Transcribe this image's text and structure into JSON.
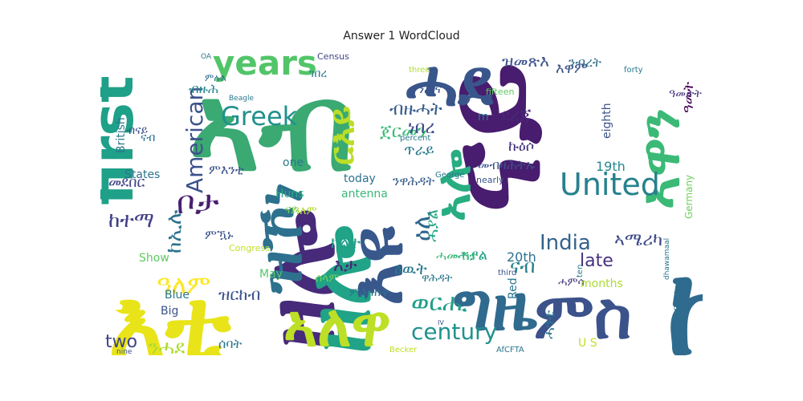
{
  "chart_data": {
    "type": "wordcloud",
    "title": "Answer 1 WordCloud",
    "colormap": "viridis",
    "background": "#ffffff",
    "words": [
      {
        "text": "ኣብ",
        "weight": 1.0,
        "color": "#3aa972"
      },
      {
        "text": "ናይ",
        "weight": 0.98,
        "color": "#481c6e"
      },
      {
        "text": "ከም",
        "weight": 0.95,
        "color": "#2f6b8e"
      },
      {
        "text": "እቲ",
        "weight": 0.9,
        "color": "#e8e419"
      },
      {
        "text": "ዘሎ",
        "weight": 0.82,
        "color": "#472a7a"
      },
      {
        "text": "ዘሎ",
        "weight": 0.72,
        "color": "#20a386"
      },
      {
        "text": "እዩ",
        "weight": 0.6,
        "color": "#38588c"
      },
      {
        "text": "ዝኾነ",
        "weight": 0.62,
        "color": "#2d718e"
      },
      {
        "text": "ኣለዋ",
        "weight": 0.55,
        "color": "#bddf26"
      },
      {
        "text": "ግዜ",
        "weight": 0.58,
        "color": "#306a8e"
      },
      {
        "text": "ምስ",
        "weight": 0.55,
        "color": "#3b528b"
      },
      {
        "text": "ሓደ",
        "weight": 0.5,
        "color": "#39568c"
      },
      {
        "text": "ኣዋን",
        "weight": 0.45,
        "color": "#3aba76"
      },
      {
        "text": "ኣሎ",
        "weight": 0.42,
        "color": "#27ad81"
      },
      {
        "text": "first",
        "weight": 0.42,
        "color": "#1fa088"
      },
      {
        "text": "years",
        "weight": 0.32,
        "color": "#52c569"
      },
      {
        "text": "United",
        "weight": 0.3,
        "color": "#26818e"
      },
      {
        "text": "ዓመት",
        "weight": 0.28,
        "color": "#440154"
      },
      {
        "text": "ዕሊ",
        "weight": 0.26,
        "color": "#31678e"
      },
      {
        "text": "ዓለም",
        "weight": 0.26,
        "color": "#fde725"
      },
      {
        "text": "ቦታ",
        "weight": 0.26,
        "color": "#481f70"
      },
      {
        "text": "ርእይ",
        "weight": 0.25,
        "color": "#bade28"
      },
      {
        "text": "Greek",
        "weight": 0.22,
        "color": "#21918c"
      },
      {
        "text": "American",
        "weight": 0.2,
        "color": "#3b528b"
      },
      {
        "text": "century",
        "weight": 0.2,
        "color": "#20928c"
      },
      {
        "text": "India",
        "weight": 0.17,
        "color": "#33638d"
      },
      {
        "text": "ከተማ",
        "weight": 0.17,
        "color": "#424086"
      },
      {
        "text": "ከኢሉ",
        "weight": 0.16,
        "color": "#2c728e"
      },
      {
        "text": "ወርሒ",
        "weight": 0.18,
        "color": "#1f9e89"
      },
      {
        "text": "ጀርመን",
        "weight": 0.15,
        "color": "#3aba76"
      },
      {
        "text": "ኣሜሪካ",
        "weight": 0.14,
        "color": "#3e4989"
      },
      {
        "text": "ብዙሓት",
        "weight": 0.14,
        "color": "#365c8d"
      },
      {
        "text": "ዝመጽእ",
        "weight": 0.13,
        "color": "#3b528b"
      },
      {
        "text": "ደረጃ",
        "weight": 0.13,
        "color": "#482878"
      },
      {
        "text": "ነበረ",
        "weight": 0.13,
        "color": "#3e4a89"
      },
      {
        "text": "ናብ",
        "weight": 0.13,
        "color": "#26828e"
      },
      {
        "text": "two",
        "weight": 0.13,
        "color": "#414487"
      },
      {
        "text": "late",
        "weight": 0.12,
        "color": "#46327e"
      },
      {
        "text": "ንሓደ",
        "weight": 0.12,
        "color": "#addc30"
      },
      {
        "text": "ሓንቲ",
        "weight": 0.11,
        "color": "#2a788e"
      },
      {
        "text": "ገበረ",
        "weight": 0.11,
        "color": "#297b8e"
      },
      {
        "text": "ክልተ",
        "weight": 0.1,
        "color": "#1f9f88"
      },
      {
        "text": "እታ",
        "weight": 0.1,
        "color": "#482475"
      },
      {
        "text": "ዝርከብ",
        "weight": 0.1,
        "color": "#3b528b"
      },
      {
        "text": "ጥራይ",
        "weight": 0.09,
        "color": "#2a788e"
      },
      {
        "text": "ብዙሕ",
        "weight": 0.09,
        "color": "#23888e"
      },
      {
        "text": "ኩዕሶ",
        "weight": 0.09,
        "color": "#46337f"
      },
      {
        "text": "እዋም",
        "weight": 0.09,
        "color": "#3b528b"
      },
      {
        "text": "ሓያል",
        "weight": 0.09,
        "color": "#20a486"
      },
      {
        "text": "ሓያል",
        "weight": 0.09,
        "color": "#22a884"
      },
      {
        "text": "ንብረት",
        "weight": 0.08,
        "color": "#2e6f8e"
      },
      {
        "text": "ንሕና",
        "weight": 0.08,
        "color": "#3b528b"
      },
      {
        "text": "19th",
        "weight": 0.08,
        "color": "#24878e"
      },
      {
        "text": "20th",
        "weight": 0.08,
        "color": "#2d718e"
      },
      {
        "text": "ዓመታት",
        "weight": 0.08,
        "color": "#46337f"
      },
      {
        "text": "ዕዉት",
        "weight": 0.08,
        "color": "#2a788e"
      },
      {
        "text": "ኣፍሪቃ",
        "weight": 0.08,
        "color": "#2e6e8e"
      },
      {
        "text": "ሓሙሽተ",
        "weight": 0.08,
        "color": "#3aba76"
      },
      {
        "text": "መደበር",
        "weight": 0.07,
        "color": "#414487"
      },
      {
        "text": "ናብ",
        "weight": 0.07,
        "color": "#2c728e"
      },
      {
        "text": "ንዋሕዳት",
        "weight": 0.07,
        "color": "#365d8d"
      },
      {
        "text": "ሰላም",
        "weight": 0.07,
        "color": "#6ece58"
      },
      {
        "text": "ሓምሳ",
        "weight": 0.07,
        "color": "#443a83"
      },
      {
        "text": "መብዛሕትኡ",
        "weight": 0.07,
        "color": "#3b528b"
      },
      {
        "text": "ምእንቲ",
        "weight": 0.07,
        "color": "#3b528b"
      },
      {
        "text": "ሰባት",
        "weight": 0.07,
        "color": "#2a788e"
      },
      {
        "text": "ዋሕዳት",
        "weight": 0.07,
        "color": "#2a788e"
      },
      {
        "text": "ምሕዝነት",
        "weight": 0.07,
        "color": "#2d708e"
      },
      {
        "text": "ዓለም",
        "weight": 0.07,
        "color": "#addc30"
      },
      {
        "text": "ብናይ",
        "weight": 0.07,
        "color": "#3b528b"
      },
      {
        "text": "ምሉእ",
        "weight": 0.07,
        "color": "#2f6b8e"
      },
      {
        "text": "ምዃኑ",
        "weight": 0.07,
        "color": "#3b528b"
      },
      {
        "text": "ናይ",
        "weight": 0.07,
        "color": "#6ece58"
      },
      {
        "text": "States",
        "weight": 0.06,
        "color": "#2c728e"
      },
      {
        "text": "British",
        "weight": 0.06,
        "color": "#2a788e"
      },
      {
        "text": "antenna",
        "weight": 0.06,
        "color": "#38b977"
      },
      {
        "text": "Huns",
        "weight": 0.06,
        "color": "#27ad81"
      },
      {
        "text": "one",
        "weight": 0.06,
        "color": "#2a788e"
      },
      {
        "text": "today",
        "weight": 0.06,
        "color": "#2c728e"
      },
      {
        "text": "May",
        "weight": 0.06,
        "color": "#54c568"
      },
      {
        "text": "Blue",
        "weight": 0.06,
        "color": "#2a788e"
      },
      {
        "text": "Big",
        "weight": 0.06,
        "color": "#3b528b"
      },
      {
        "text": "Show",
        "weight": 0.06,
        "color": "#5ec962"
      },
      {
        "text": "eighth",
        "weight": 0.06,
        "color": "#3b528b"
      },
      {
        "text": "Germany",
        "weight": 0.06,
        "color": "#6ece58"
      },
      {
        "text": "months",
        "weight": 0.06,
        "color": "#addc30"
      },
      {
        "text": "Red",
        "weight": 0.06,
        "color": "#2a788e"
      },
      {
        "text": "U S",
        "weight": 0.06,
        "color": "#c2df23"
      },
      {
        "text": "m",
        "weight": 0.05,
        "color": "#2a788e"
      },
      {
        "text": "Census",
        "weight": 0.04,
        "color": "#414487"
      },
      {
        "text": "Congress",
        "weight": 0.04,
        "color": "#bddf26"
      },
      {
        "text": "fifteen",
        "weight": 0.04,
        "color": "#5ec962"
      },
      {
        "text": "forty",
        "weight": 0.03,
        "color": "#2a788e"
      },
      {
        "text": "three",
        "weight": 0.03,
        "color": "#addc30"
      },
      {
        "text": "nearly",
        "weight": 0.04,
        "color": "#3b528b"
      },
      {
        "text": "George",
        "weight": 0.03,
        "color": "#2a788e"
      },
      {
        "text": "percent",
        "weight": 0.03,
        "color": "#2a788e"
      },
      {
        "text": "third",
        "weight": 0.03,
        "color": "#3b528b"
      },
      {
        "text": "ten",
        "weight": 0.03,
        "color": "#2a788e"
      },
      {
        "text": "nine",
        "weight": 0.03,
        "color": "#3b528b"
      },
      {
        "text": "IV",
        "weight": 0.03,
        "color": "#3b528b"
      },
      {
        "text": "Becker",
        "weight": 0.03,
        "color": "#bddf26"
      },
      {
        "text": "AfCFTA",
        "weight": 0.03,
        "color": "#2a788e"
      },
      {
        "text": "Beagle",
        "weight": 0.03,
        "color": "#2a788e"
      },
      {
        "text": "OA",
        "weight": 0.03,
        "color": "#2a788e"
      },
      {
        "text": "dhawamaal",
        "weight": 0.03,
        "color": "#2a788e"
      }
    ]
  }
}
